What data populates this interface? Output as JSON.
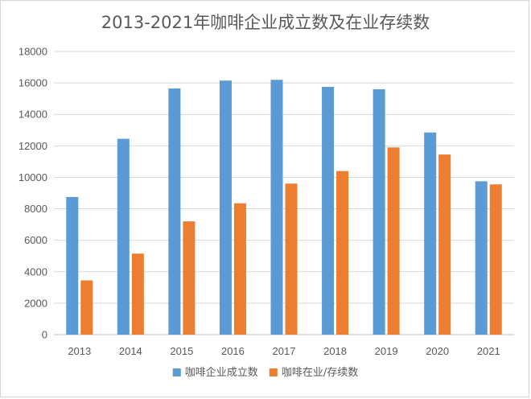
{
  "chart_data": {
    "type": "bar",
    "title": "2013-2021年咖啡企业成立数及在业存续数",
    "categories": [
      "2013",
      "2014",
      "2015",
      "2016",
      "2017",
      "2018",
      "2019",
      "2020",
      "2021"
    ],
    "series": [
      {
        "name": "咖啡企业成立数",
        "color": "#5B9BD5",
        "values": [
          8750,
          12450,
          15650,
          16150,
          16200,
          15750,
          15600,
          12850,
          9750
        ]
      },
      {
        "name": "咖啡在业/存续数",
        "color": "#ED7D31",
        "values": [
          3450,
          5150,
          7200,
          8350,
          9600,
          10400,
          11900,
          11450,
          9550
        ]
      }
    ],
    "ylim": [
      0,
      18000
    ],
    "yticks": [
      "0",
      "2000",
      "4000",
      "6000",
      "8000",
      "10000",
      "12000",
      "14000",
      "16000",
      "18000"
    ],
    "grid": true,
    "legend_position": "bottom"
  }
}
